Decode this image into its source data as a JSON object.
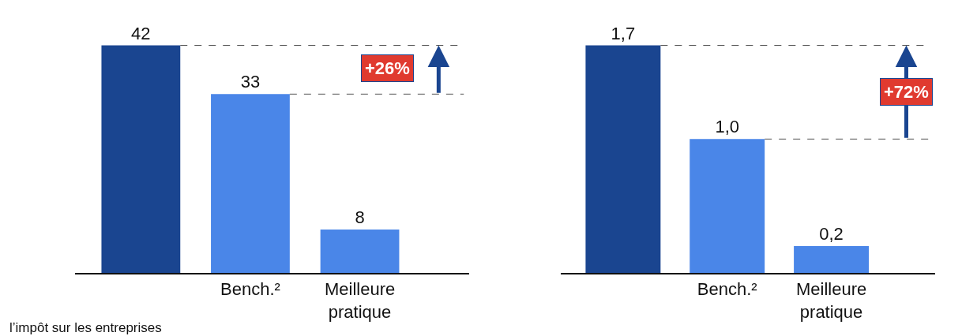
{
  "chart_data": [
    {
      "type": "bar",
      "categories": [
        null,
        "Bench.²",
        "Meilleure\npratique"
      ],
      "colors": [
        "#1a4590",
        "#4a86e8",
        "#4a86e8"
      ],
      "values": [
        42,
        33,
        8
      ],
      "value_labels": [
        "42",
        "33",
        "8"
      ],
      "ref_lines": [
        {
          "axis": "y",
          "value": 42,
          "color": "#555555",
          "line_style": "dashed"
        },
        {
          "axis": "y",
          "value": 33,
          "color": "#555555",
          "line_style": "dashed"
        }
      ],
      "annotations": [
        "+26%",
        "l’impôt sur les entreprises"
      ],
      "tick_labels": "x"
    },
    {
      "type": "bar",
      "categories": [
        null,
        "Bench.²",
        "Meilleure\npratique"
      ],
      "colors": [
        "#1a4590",
        "#4a86e8",
        "#4a86e8"
      ],
      "values": [
        1.7,
        1.0,
        0.2
      ],
      "value_labels": [
        "1,7",
        "1,0",
        "0,2"
      ],
      "ref_lines": [
        {
          "axis": "y",
          "value": 1.7,
          "color": "#555555",
          "line_style": "dashed"
        },
        {
          "axis": "y",
          "value": 1.0,
          "color": "#555555",
          "line_style": "dashed"
        }
      ],
      "annotations": [
        "+72%"
      ],
      "tick_labels": "x"
    }
  ]
}
